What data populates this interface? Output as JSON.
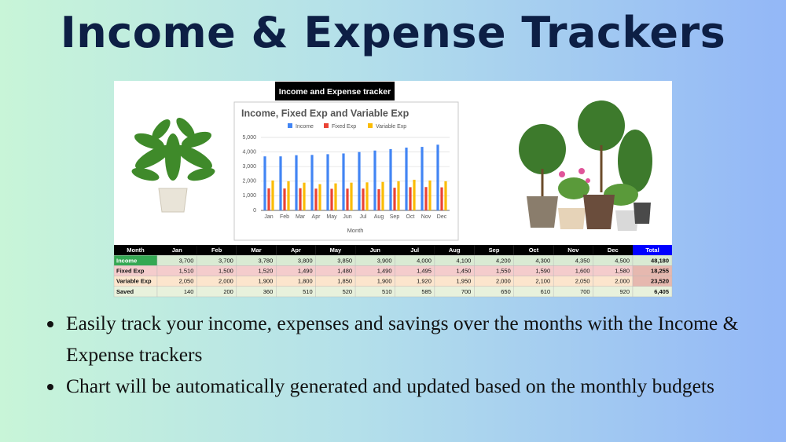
{
  "header": {
    "title": "Income & Expense Trackers"
  },
  "sheet_title": "Income and Expense tracker",
  "chart_data": {
    "type": "bar",
    "title": "Income, Fixed Exp and Variable Exp",
    "x_label": "Month",
    "categories": [
      "Jan",
      "Feb",
      "Mar",
      "Apr",
      "May",
      "Jun",
      "Jul",
      "Aug",
      "Sep",
      "Oct",
      "Nov",
      "Dec"
    ],
    "series": [
      {
        "name": "Income",
        "color": "#4285f4",
        "values": [
          3700,
          3700,
          3780,
          3800,
          3850,
          3900,
          4000,
          4100,
          4200,
          4300,
          4350,
          4500
        ]
      },
      {
        "name": "Fixed Exp",
        "color": "#ea4335",
        "values": [
          1510,
          1500,
          1520,
          1490,
          1480,
          1490,
          1495,
          1450,
          1550,
          1590,
          1600,
          1580
        ]
      },
      {
        "name": "Variable Exp",
        "color": "#fbbc04",
        "values": [
          2050,
          2000,
          1900,
          1800,
          1850,
          1900,
          1920,
          1950,
          2000,
          2100,
          2050,
          2000
        ]
      }
    ],
    "ylim": [
      0,
      5000
    ],
    "yticks": [
      0,
      {
        "value": 1000,
        "label": "1,000"
      },
      {
        "value": 2000,
        "label": "2,000"
      },
      {
        "value": 3000,
        "label": "3,000"
      },
      {
        "value": 4000,
        "label": "4,000"
      },
      {
        "value": 5000,
        "label": "5,000"
      }
    ],
    "grid": true,
    "legend": "top"
  },
  "table": {
    "header": [
      "Month",
      "Jan",
      "Feb",
      "Mar",
      "Apr",
      "May",
      "Jun",
      "Jul",
      "Aug",
      "Sep",
      "Oct",
      "Nov",
      "Dec",
      "Total"
    ],
    "rows": [
      [
        "Income",
        "3,700",
        "3,700",
        "3,780",
        "3,800",
        "3,850",
        "3,900",
        "4,000",
        "4,100",
        "4,200",
        "4,300",
        "4,350",
        "4,500",
        "48,180"
      ],
      [
        "Fixed Exp",
        "1,510",
        "1,500",
        "1,520",
        "1,490",
        "1,480",
        "1,490",
        "1,495",
        "1,450",
        "1,550",
        "1,590",
        "1,600",
        "1,580",
        "18,255"
      ],
      [
        "Variable Exp",
        "2,050",
        "2,000",
        "1,900",
        "1,800",
        "1,850",
        "1,900",
        "1,920",
        "1,950",
        "2,000",
        "2,100",
        "2,050",
        "2,000",
        "23,520"
      ],
      [
        "Saved",
        "140",
        "200",
        "360",
        "510",
        "520",
        "510",
        "585",
        "700",
        "650",
        "610",
        "700",
        "920",
        "6,405"
      ]
    ]
  },
  "bullets": [
    "Easily track your income, expenses and savings over the months with the Income & Expense trackers",
    "Chart will be automatically generated and updated based on the monthly budgets"
  ]
}
